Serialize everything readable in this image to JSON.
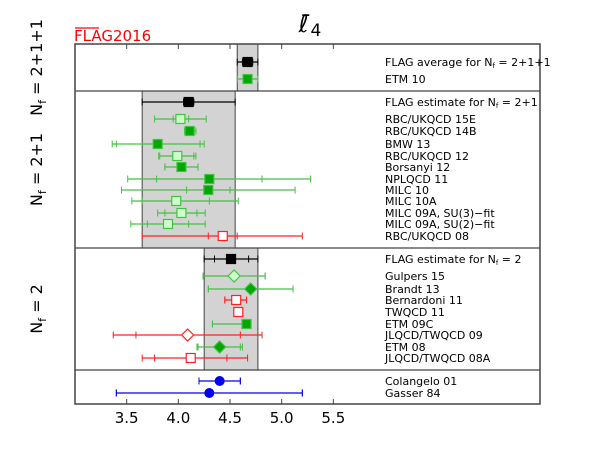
{
  "chart_data": {
    "type": "scatter",
    "title": "ℓ̄4",
    "title_main": "ℓ̄",
    "title_sub": "4",
    "watermark": {
      "bar_part": "FLAG",
      "rest": "2016"
    },
    "xlim": [
      3.0,
      7.5
    ],
    "xticks": [
      3.5,
      4.0,
      4.5,
      5.0,
      5.5
    ],
    "xtick_labels": [
      "3.5",
      "4.0",
      "4.5",
      "5.0",
      "5.5"
    ],
    "colors": {
      "black": "#000000",
      "green": "#00a800",
      "lightgreen_fill": "#ccffcc",
      "green_bar": "#44c044",
      "red": "#ff2020",
      "blue": "#0000ee",
      "band": "#d3d3d3",
      "flag_red": "#ff0000"
    },
    "panels": [
      {
        "ylabel": {
          "main": "N",
          "sub": "f",
          "suffix": " = 2+1+1"
        },
        "band": [
          4.57,
          4.77
        ],
        "rows": [
          {
            "label": "FLAG average for N",
            "sub": "f",
            "suffix": " = 2+1+1",
            "value": 4.67,
            "stat": [
              4.62,
              4.72
            ],
            "tot": [
              4.57,
              4.77
            ],
            "marker": "square",
            "style": "black"
          },
          {
            "label": "ETM 10",
            "value": 4.67,
            "stat": [
              4.64,
              4.7
            ],
            "tot": [
              4.57,
              4.77
            ],
            "marker": "square",
            "style": "green-filled"
          }
        ]
      },
      {
        "ylabel": {
          "main": "N",
          "sub": "f",
          "suffix": " = 2+1"
        },
        "band": [
          3.65,
          4.55
        ],
        "rows": [
          {
            "label": "FLAG estimate for N",
            "sub": "f",
            "suffix": " = 2+1",
            "value": 4.1,
            "stat": [
              4.05,
              4.15
            ],
            "tot": [
              3.65,
              4.55
            ],
            "marker": "square",
            "style": "black"
          },
          {
            "label": "RBC/UKQCD 15E",
            "value": 4.02,
            "stat": [
              3.95,
              4.1
            ],
            "tot": [
              3.77,
              4.27
            ],
            "marker": "square",
            "style": "green-open"
          },
          {
            "label": "RBC/UKQCD 14B",
            "value": 4.11,
            "stat": [
              4.08,
              4.14
            ],
            "tot": [
              4.06,
              4.17
            ],
            "marker": "square",
            "style": "green-filled"
          },
          {
            "label": "BMW 13",
            "value": 3.8,
            "stat": [
              3.4,
              4.21
            ],
            "tot": [
              3.36,
              4.25
            ],
            "marker": "square",
            "style": "green-filled"
          },
          {
            "label": "RBC/UKQCD 12",
            "value": 3.99,
            "stat": [
              3.82,
              4.15
            ],
            "tot": [
              3.81,
              4.17
            ],
            "marker": "square",
            "style": "green-open"
          },
          {
            "label": "Borsanyi 12",
            "value": 4.03,
            "stat": [
              3.87,
              4.19
            ],
            "tot": [
              3.87,
              4.19
            ],
            "marker": "square",
            "style": "green-filled"
          },
          {
            "label": "NPLQCD 11",
            "value": 4.3,
            "stat": [
              3.79,
              4.81
            ],
            "tot": [
              3.51,
              5.28
            ],
            "marker": "square",
            "style": "green-filled"
          },
          {
            "label": "MILC 10",
            "value": 4.29,
            "stat": [
              4.08,
              4.5
            ],
            "tot": [
              3.45,
              5.13
            ],
            "marker": "square",
            "style": "green-filled"
          },
          {
            "label": "MILC 10A",
            "value": 3.98,
            "stat": [
              3.65,
              4.3
            ],
            "tot": [
              3.55,
              4.58
            ],
            "marker": "square",
            "style": "green-open"
          },
          {
            "label": "MILC 09A, SU(3)−fit",
            "value": 4.03,
            "stat": [
              3.87,
              4.18
            ],
            "tot": [
              3.8,
              4.26
            ],
            "marker": "square",
            "style": "green-open"
          },
          {
            "label": "MILC 09A, SU(2)−fit",
            "value": 3.9,
            "stat": [
              3.7,
              4.1
            ],
            "tot": [
              3.54,
              4.26
            ],
            "marker": "square",
            "style": "green-open"
          },
          {
            "label": "RBC/UKQCD 08",
            "value": 4.43,
            "stat": [
              4.29,
              4.57
            ],
            "tot": [
              3.65,
              5.2
            ],
            "marker": "square",
            "style": "red-open"
          }
        ]
      },
      {
        "ylabel": {
          "main": "N",
          "sub": "f",
          "suffix": " = 2"
        },
        "band": [
          4.25,
          4.77
        ],
        "rows": [
          {
            "label": "FLAG estimate for N",
            "sub": "f",
            "suffix": " = 2",
            "value": 4.51,
            "stat": [
              4.35,
              4.68
            ],
            "tot": [
              4.25,
              4.77
            ],
            "marker": "square",
            "style": "black"
          },
          {
            "label": "Gulpers 15",
            "value": 4.54,
            "stat": [
              4.24,
              4.84
            ],
            "tot": [
              4.24,
              4.84
            ],
            "marker": "diamond",
            "style": "green-open"
          },
          {
            "label": "Brandt 13",
            "value": 4.7,
            "stat": [
              4.29,
              5.11
            ],
            "tot": [
              4.29,
              5.11
            ],
            "marker": "diamond",
            "style": "green-filled"
          },
          {
            "label": "Bernardoni 11",
            "value": 4.56,
            "stat": [
              4.45,
              4.66
            ],
            "tot": [
              4.45,
              4.66
            ],
            "marker": "square",
            "style": "red-open"
          },
          {
            "label": "TWQCD 11",
            "value": 4.58,
            "stat": null,
            "tot": null,
            "marker": "square",
            "style": "red-open"
          },
          {
            "label": "ETM 09C",
            "value": 4.66,
            "stat": [
              4.33,
              4.69
            ],
            "tot": [
              4.33,
              4.69
            ],
            "marker": "square",
            "style": "green-filled"
          },
          {
            "label": "JLQCD/TWQCD 09",
            "value": 4.09,
            "stat": [
              3.59,
              4.6
            ],
            "tot": [
              3.37,
              4.81
            ],
            "marker": "diamond",
            "style": "red-open"
          },
          {
            "label": "ETM 08",
            "value": 4.4,
            "stat": [
              4.19,
              4.6
            ],
            "tot": [
              4.18,
              4.62
            ],
            "marker": "diamond",
            "style": "green-filled"
          },
          {
            "label": "JLQCD/TWQCD 08A",
            "value": 4.12,
            "stat": [
              3.77,
              4.47
            ],
            "tot": [
              3.65,
              4.67
            ],
            "marker": "square",
            "style": "red-open"
          }
        ]
      },
      {
        "ylabel": null,
        "band": null,
        "rows": [
          {
            "label": "Colangelo 01",
            "value": 4.4,
            "stat": [
              4.2,
              4.6
            ],
            "tot": [
              4.2,
              4.6
            ],
            "marker": "circle",
            "style": "blue"
          },
          {
            "label": "Gasser 84",
            "value": 4.3,
            "stat": [
              3.4,
              5.2
            ],
            "tot": [
              3.4,
              5.2
            ],
            "marker": "circle",
            "style": "blue"
          }
        ]
      }
    ]
  }
}
